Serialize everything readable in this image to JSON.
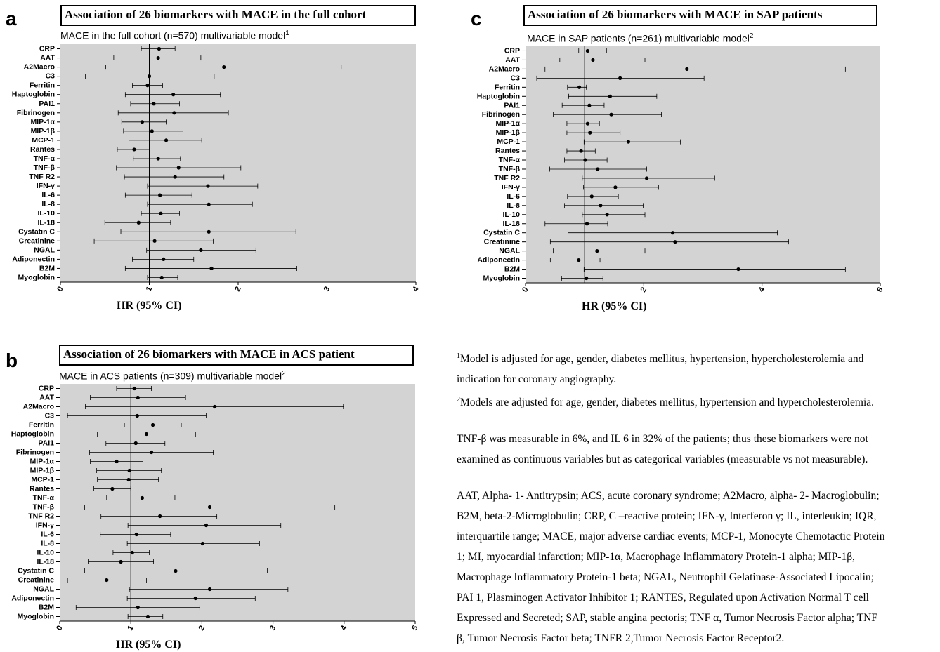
{
  "chart_data": [
    {
      "panel": "a",
      "type": "forest",
      "title": "Association of 26 biomarkers with MACE in the full cohort",
      "subtitle": "MACE in the full cohort (n=570) multivariable model",
      "subtitle_sup": "1",
      "xlabel": "HR (95% CI)",
      "xlim": [
        0,
        4
      ],
      "xticks": [
        "0",
        "1",
        "2",
        "3",
        "4"
      ],
      "reference_line": 1,
      "categories": [
        "CRP",
        "AAT",
        "A2Macro",
        "C3",
        "Ferritin",
        "Haptoglobin",
        "PAI1",
        "Fibrinogen",
        "MIP-1α",
        "MIP-1β",
        "MCP-1",
        "Rantes",
        "TNF-α",
        "TNF-β",
        "TNF R2",
        "IFN-γ",
        "IL-6",
        "IL-8",
        "IL-10",
        "IL-18",
        "Cystatin C",
        "Creatinine",
        "NGAL",
        "Adiponectin",
        "B2M",
        "Myoglobin"
      ],
      "hr": [
        1.11,
        1.1,
        1.84,
        1.0,
        0.98,
        1.27,
        1.05,
        1.28,
        0.92,
        1.03,
        1.19,
        0.83,
        1.1,
        1.33,
        1.29,
        1.66,
        1.12,
        1.67,
        1.13,
        0.88,
        1.67,
        1.06,
        1.58,
        1.16,
        1.7,
        1.14
      ],
      "lower": [
        0.91,
        0.6,
        0.51,
        0.28,
        0.81,
        0.73,
        0.79,
        0.65,
        0.69,
        0.71,
        0.77,
        0.64,
        0.82,
        0.63,
        0.72,
        0.98,
        0.73,
        0.98,
        0.91,
        0.5,
        0.68,
        0.38,
        0.97,
        0.81,
        0.73,
        0.98
      ],
      "upper": [
        1.29,
        1.58,
        3.16,
        1.73,
        1.15,
        1.8,
        1.34,
        1.89,
        1.19,
        1.38,
        1.59,
        1.0,
        1.35,
        2.03,
        1.84,
        2.22,
        1.48,
        2.16,
        1.34,
        1.24,
        2.65,
        1.72,
        2.2,
        1.5,
        2.66,
        1.32
      ]
    },
    {
      "panel": "b",
      "type": "forest",
      "title": "Association of 26 biomarkers with MACE in ACS patient",
      "subtitle": "MACE in ACS patients (n=309) multivariable model",
      "subtitle_sup": "2",
      "xlabel": "HR (95% CI)",
      "xlim": [
        0,
        5
      ],
      "xticks": [
        "0",
        "1",
        "2",
        "3",
        "4",
        "5"
      ],
      "reference_line": 1,
      "categories": [
        "CRP",
        "AAT",
        "A2Macro",
        "C3",
        "Ferritin",
        "Haptoglobin",
        "PAI1",
        "Fibrinogen",
        "MIP-1α",
        "MIP-1β",
        "MCP-1",
        "Rantes",
        "TNF-α",
        "TNF-β",
        "TNF R2",
        "IFN-γ",
        "IL-6",
        "IL-8",
        "IL-10",
        "IL-18",
        "Cystatin C",
        "Creatinine",
        "NGAL",
        "Adiponectin",
        "B2M",
        "Myoglobin"
      ],
      "hr": [
        1.05,
        1.1,
        2.18,
        1.09,
        1.31,
        1.22,
        1.07,
        1.29,
        0.8,
        0.98,
        0.97,
        0.74,
        1.16,
        2.11,
        1.41,
        2.06,
        1.08,
        2.01,
        1.02,
        0.86,
        1.63,
        0.66,
        2.11,
        1.91,
        1.1,
        1.24
      ],
      "lower": [
        0.8,
        0.43,
        0.36,
        0.11,
        0.91,
        0.53,
        0.65,
        0.42,
        0.43,
        0.52,
        0.53,
        0.48,
        0.66,
        0.35,
        0.58,
        0.96,
        0.57,
        0.95,
        0.75,
        0.4,
        0.35,
        0.11,
        0.98,
        0.95,
        0.23,
        0.96
      ],
      "upper": [
        1.29,
        1.77,
        3.99,
        2.06,
        1.71,
        1.91,
        1.48,
        2.16,
        1.17,
        1.43,
        1.39,
        1.0,
        1.62,
        3.87,
        2.21,
        3.11,
        1.56,
        2.81,
        1.26,
        1.32,
        2.92,
        1.22,
        3.21,
        2.75,
        1.97,
        1.45
      ]
    },
    {
      "panel": "c",
      "type": "forest",
      "title": "Association of 26 biomarkers with MACE in SAP patients",
      "subtitle": "MACE in SAP patients (n=261) multivariable model",
      "subtitle_sup": "2",
      "xlabel": "HR (95% CI)",
      "xlim": [
        0,
        6
      ],
      "xticks": [
        "0",
        "2",
        "4",
        "6"
      ],
      "reference_line": 1,
      "categories": [
        "CRP",
        "AAT",
        "A2Macro",
        "C3",
        "Ferritin",
        "Haptoglobin",
        "PAI1",
        "Fibrinogen",
        "MIP-1α",
        "MIP-1β",
        "MCP-1",
        "Rantes",
        "TNF-α",
        "TNF-β",
        "TNF R2",
        "IFN-γ",
        "IL-6",
        "IL-8",
        "IL-10",
        "IL-18",
        "Cystatin C",
        "Creatinine",
        "NGAL",
        "Adiponectin",
        "B2M",
        "Myoglobin"
      ],
      "hr": [
        1.05,
        1.14,
        2.73,
        1.6,
        0.91,
        1.43,
        1.08,
        1.45,
        1.05,
        1.09,
        1.74,
        0.94,
        1.01,
        1.22,
        2.05,
        1.52,
        1.12,
        1.27,
        1.38,
        1.04,
        2.49,
        2.53,
        1.21,
        0.9,
        3.6,
        1.03
      ],
      "lower": [
        0.9,
        0.58,
        0.33,
        0.19,
        0.71,
        0.73,
        0.62,
        0.47,
        0.7,
        0.7,
        0.99,
        0.7,
        0.66,
        0.41,
        0.96,
        0.98,
        0.71,
        0.66,
        0.96,
        0.33,
        0.72,
        0.42,
        0.47,
        0.42,
        0.99,
        0.61
      ],
      "upper": [
        1.37,
        2.02,
        5.41,
        3.02,
        1.03,
        2.22,
        1.33,
        2.3,
        1.25,
        1.6,
        2.62,
        1.18,
        1.38,
        2.05,
        3.2,
        2.25,
        1.57,
        1.99,
        2.02,
        1.39,
        4.26,
        4.45,
        2.02,
        1.26,
        5.41,
        1.31
      ]
    }
  ],
  "notes": {
    "note1_marker": "1",
    "note1_text": "Model is adjusted for age, gender, diabetes mellitus, hypertension,  hypercholesterolemia and",
    "note1_text_cont": "indication for coronary angiography.",
    "note2_marker": "2",
    "note2_text": "Models are adjusted for age, gender, diabetes mellitus, hypertension and hypercholesterolemia.",
    "measurable": [
      "TNF-β was measurable in 6%, and IL 6 in 32% of the patients; thus these biomarkers were not",
      "examined as continuous variables but as categorical variables (measurable vs not measurable)."
    ],
    "abbreviations": [
      "AAT, Alpha- 1- Antitrypsin; ACS, acute coronary syndrome; A2Macro, alpha- 2- Macroglobulin;",
      "B2M, beta-2-Microglobulin; CRP, C –reactive protein; IFN-γ, Interferon γ; IL, interleukin; IQR,",
      "interquartile range; MACE, major adverse cardiac events; MCP-1, Monocyte Chemotactic Protein",
      "1; MI, myocardial infarction; MIP-1α, Macrophage Inflammatory Protein-1 alpha; MIP-1β,",
      "Macrophage Inflammatory Protein-1 beta; NGAL, Neutrophil Gelatinase-Associated Lipocalin;",
      "PAI 1, Plasminogen Activator Inhibitor 1; RANTES, Regulated upon Activation Normal T cell",
      "Expressed and Secreted; SAP, stable angina pectoris; TNF α, Tumor Necrosis Factor alpha; TNF",
      "β, Tumor Necrosis Factor beta; TNFR 2,Tumor Necrosis Factor Receptor2."
    ]
  },
  "colors": {
    "plot_background": "#d3d3d3",
    "ink": "#000000"
  }
}
